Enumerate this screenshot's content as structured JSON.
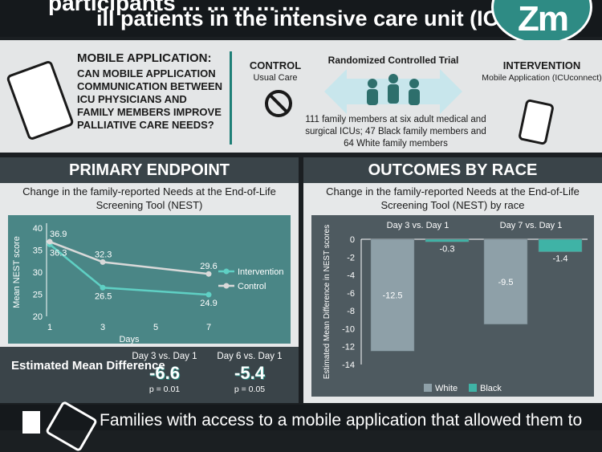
{
  "header": {
    "line1": "participants ... ... ... ... ...",
    "line2": "ill patients in the intensive care unit (ICU)"
  },
  "logo": {
    "text": "Zm"
  },
  "study": {
    "ma_title": "MOBILE APPLICATION:",
    "ma_question": "CAN MOBILE APPLICATION COMMUNICATION BETWEEN ICU PHYSICIANS AND FAMILY MEMBERS IMPROVE PALLIATIVE CARE NEEDS?",
    "control_title": "CONTROL",
    "control_sub": "Usual Care",
    "rct_title": "Randomized Controlled Trial",
    "rct_desc": "111 family members at six adult medical and surgical ICUs; 47 Black family members and 64 White family members",
    "intervention_title": "INTERVENTION",
    "intervention_sub": "Mobile Application (ICUconnect)"
  },
  "primary": {
    "heading": "PRIMARY ENDPOINT",
    "subtitle": "Change in the family-reported Needs at the End-of-Life Screening Tool (NEST)",
    "emd_label": "Estimated Mean Difference",
    "emd": [
      {
        "label": "Day 3 vs. Day 1",
        "value": "-6.6",
        "p": "p = 0.01"
      },
      {
        "label": "Day 6 vs. Day 1",
        "value": "-5.4",
        "p": "p = 0.05"
      }
    ]
  },
  "outcomes": {
    "heading": "OUTCOMES BY RACE",
    "subtitle": "Change in the family-reported Needs at the End-of-Life Screening Tool (NEST) by race"
  },
  "footer": {
    "text": "Families with access to a mobile application that allowed them to"
  },
  "colors": {
    "teal": "#3fb3a6",
    "white_bar": "#8ea0a8",
    "line_control": "#d9d9d9",
    "line_intervention": "#5fd0c4"
  },
  "chart_data": [
    {
      "type": "line",
      "xlabel": "Days",
      "ylabel": "Mean NEST score",
      "x_ticks": [
        1,
        3,
        5,
        7
      ],
      "y_ticks": [
        20,
        25,
        30,
        35,
        40
      ],
      "ylim": [
        20,
        40
      ],
      "xlim": [
        1,
        7
      ],
      "series": [
        {
          "name": "Intervention",
          "x": [
            1,
            3,
            7
          ],
          "y": [
            36.3,
            26.5,
            24.9
          ],
          "labels": [
            "36.3",
            "26.5",
            "24.9"
          ]
        },
        {
          "name": "Control",
          "x": [
            1,
            3,
            7
          ],
          "y": [
            36.9,
            32.3,
            29.6
          ],
          "labels": [
            "36.9",
            "32.3",
            "29.6"
          ]
        }
      ],
      "legend": "right"
    },
    {
      "type": "bar",
      "ylabel": "Estimated Mean Difference in NEST scores",
      "categories": [
        "Day 3 vs. Day 1",
        "Day 7 vs. Day 1"
      ],
      "y_ticks": [
        0,
        -2,
        -4,
        -6,
        -8,
        -10,
        -12,
        -14
      ],
      "ylim": [
        -14,
        0
      ],
      "series": [
        {
          "name": "White",
          "values": [
            -12.5,
            -9.5
          ],
          "labels": [
            "-12.5",
            "-9.5"
          ]
        },
        {
          "name": "Black",
          "values": [
            -0.3,
            -1.4
          ],
          "labels": [
            "-0.3",
            "-1.4"
          ]
        }
      ],
      "legend": "bottom"
    }
  ]
}
